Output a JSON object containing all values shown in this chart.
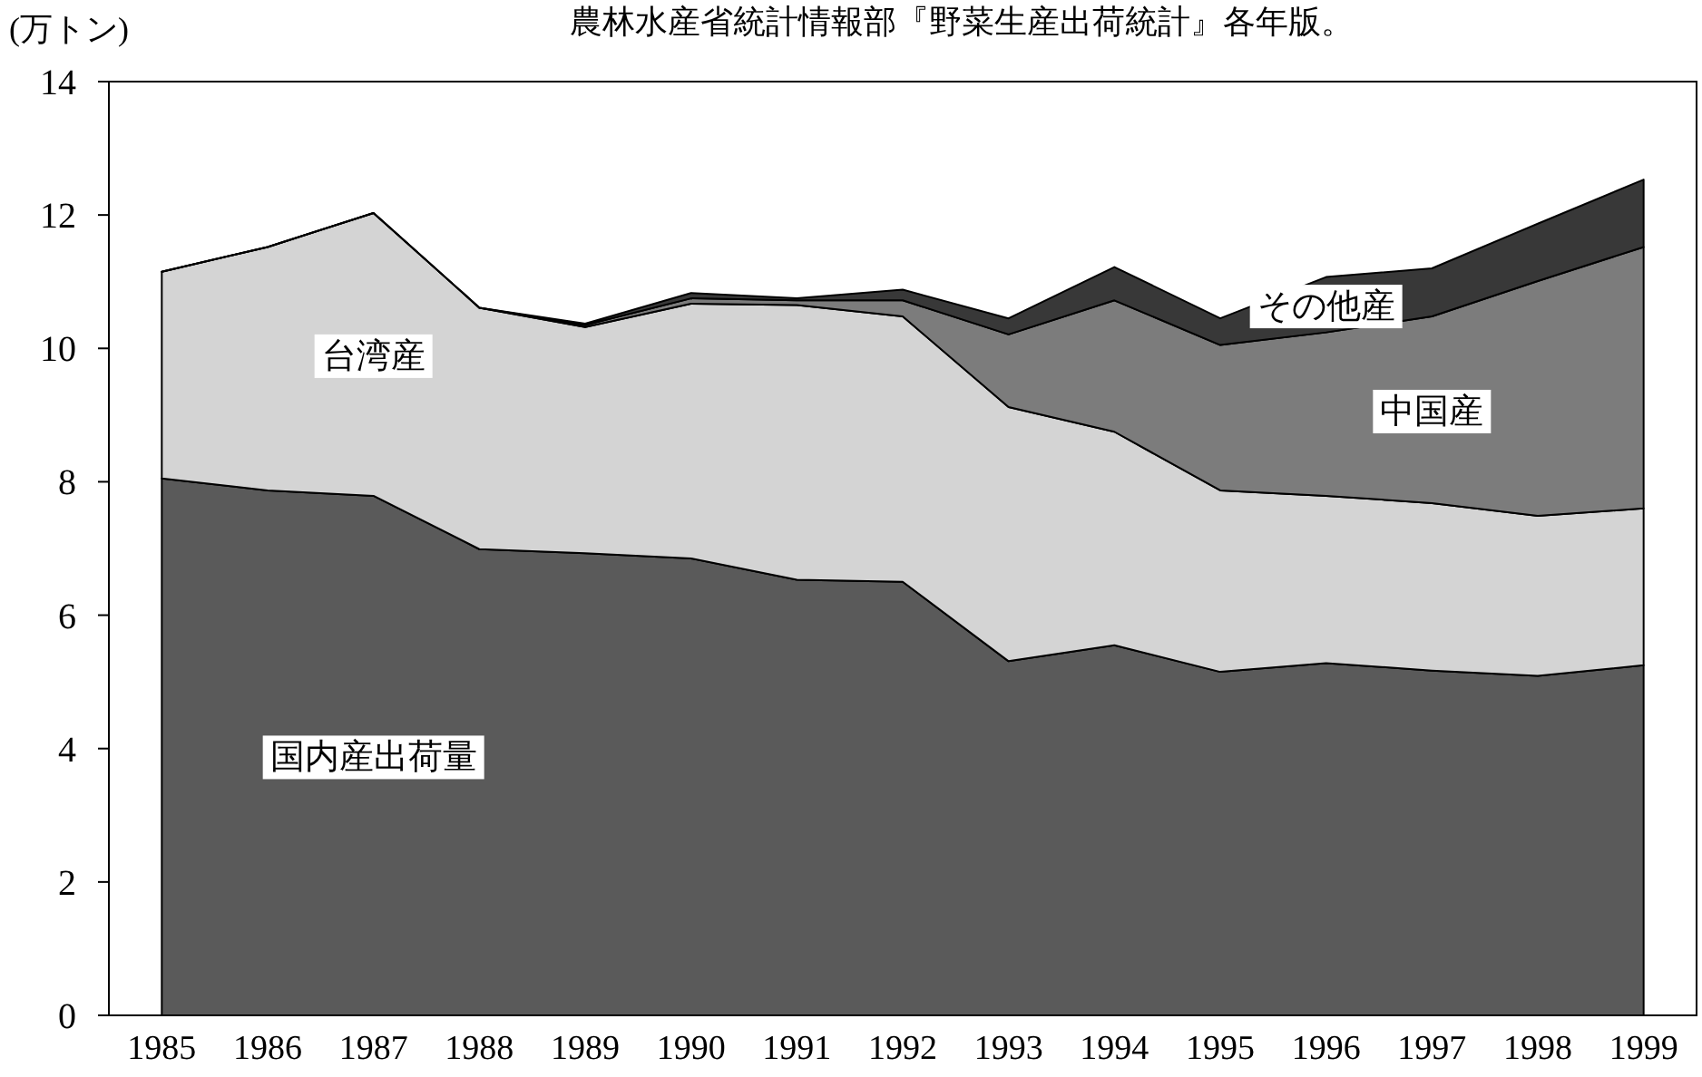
{
  "chart_data": {
    "type": "area",
    "stacked": true,
    "ylabel": "(万トン)",
    "annotations": [
      "農林水産省統計情報部『野菜生産出荷統計』各年版。"
    ],
    "x": [
      1985,
      1986,
      1987,
      1988,
      1989,
      1990,
      1991,
      1992,
      1993,
      1994,
      1995,
      1996,
      1997,
      1998,
      1999
    ],
    "series": [
      {
        "name": "国内産出荷量",
        "color": "#5a5a5a",
        "values": [
          8.05,
          7.87,
          7.79,
          6.99,
          6.93,
          6.85,
          6.53,
          6.5,
          5.31,
          5.55,
          5.15,
          5.28,
          5.17,
          5.09,
          5.25
        ]
      },
      {
        "name": "台湾産",
        "color": "#d4d4d4",
        "values": [
          3.1,
          3.65,
          4.24,
          3.62,
          3.39,
          3.82,
          4.12,
          3.98,
          3.81,
          3.2,
          2.72,
          2.51,
          2.51,
          2.4,
          2.35
        ]
      },
      {
        "name": "中国産",
        "color": "#7c7c7c",
        "values": [
          0,
          0,
          0,
          0,
          0.03,
          0.08,
          0.07,
          0.24,
          1.09,
          1.97,
          2.18,
          2.45,
          2.8,
          3.52,
          3.92
        ]
      },
      {
        "name": "その他産",
        "color": "#383838",
        "values": [
          0,
          0,
          0,
          0,
          0.02,
          0.08,
          0.03,
          0.16,
          0.24,
          0.5,
          0.4,
          0.83,
          0.72,
          0.86,
          1.01
        ]
      }
    ],
    "xlim": [
      1984.5,
      1999.5
    ],
    "xticks": [
      1985,
      1986,
      1987,
      1988,
      1989,
      1990,
      1991,
      1992,
      1993,
      1994,
      1995,
      1996,
      1997,
      1998,
      1999
    ],
    "ylim": [
      0,
      14
    ],
    "yticks": [
      0,
      2,
      4,
      6,
      8,
      10,
      12,
      14
    ],
    "grid": false,
    "legend": false
  }
}
